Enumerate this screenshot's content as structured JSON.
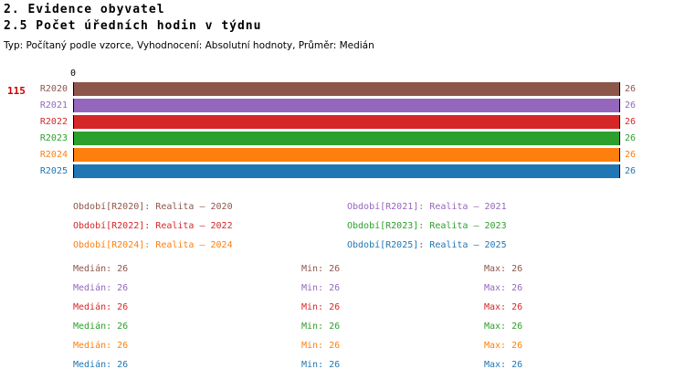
{
  "header": {
    "title": "2. Evidence obyvatel",
    "subtitle": "2.5 Počet úředních hodin v týdnu",
    "meta": "Typ: Počítaný podle vzorce, Vyhodnocení: Absolutní hodnoty, Průměr: Medián"
  },
  "chart_data": {
    "type": "bar",
    "orientation": "horizontal",
    "title": "2.5 Počet úředních hodin v týdnu",
    "row_marker": "115",
    "row_marker_color": "#cc0000",
    "origin_tick_label": "0",
    "xlim": [
      0,
      26
    ],
    "grid": false,
    "categories": [
      "R2020",
      "R2021",
      "R2022",
      "R2023",
      "R2024",
      "R2025"
    ],
    "values": [
      26,
      26,
      26,
      26,
      26,
      26
    ],
    "value_labels": [
      "26",
      "26",
      "26",
      "26",
      "26",
      "26"
    ],
    "colors": [
      "#8c564b",
      "#9467bd",
      "#d62728",
      "#2ca02c",
      "#ff7f0e",
      "#1f77b4"
    ],
    "legend": {
      "position": "bottom",
      "items": [
        {
          "label": "Období[R2020]: Realita – 2020",
          "color": "#8c564b"
        },
        {
          "label": "Období[R2021]: Realita – 2021",
          "color": "#9467bd"
        },
        {
          "label": "Období[R2022]: Realita – 2022",
          "color": "#d62728"
        },
        {
          "label": "Období[R2023]: Realita – 2023",
          "color": "#2ca02c"
        },
        {
          "label": "Období[R2024]: Realita – 2024",
          "color": "#ff7f0e"
        },
        {
          "label": "Období[R2025]: Realita – 2025",
          "color": "#1f77b4"
        }
      ]
    },
    "stats": [
      {
        "median": "Medián: 26",
        "min": "Min: 26",
        "max": "Max: 26",
        "color": "#8c564b"
      },
      {
        "median": "Medián: 26",
        "min": "Min: 26",
        "max": "Max: 26",
        "color": "#9467bd"
      },
      {
        "median": "Medián: 26",
        "min": "Min: 26",
        "max": "Max: 26",
        "color": "#d62728"
      },
      {
        "median": "Medián: 26",
        "min": "Min: 26",
        "max": "Max: 26",
        "color": "#2ca02c"
      },
      {
        "median": "Medián: 26",
        "min": "Min: 26",
        "max": "Max: 26",
        "color": "#ff7f0e"
      },
      {
        "median": "Medián: 26",
        "min": "Min: 26",
        "max": "Max: 26",
        "color": "#1f77b4"
      }
    ]
  }
}
